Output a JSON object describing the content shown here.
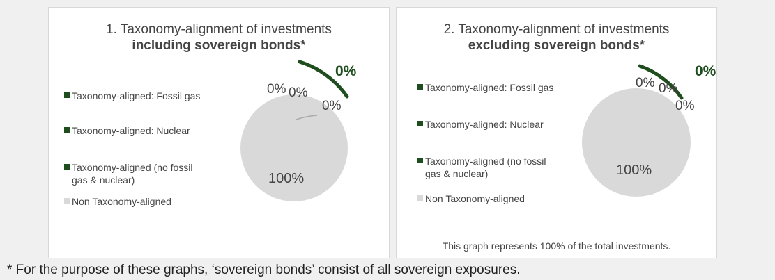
{
  "chart_data": [
    {
      "type": "pie",
      "title": "1. Taxonomy-alignment of investments",
      "subtitle": "including sovereign bonds*",
      "categories": [
        "Taxonomy-aligned: Fossil gas",
        "Taxonomy-aligned: Nuclear",
        "Taxonomy-aligned (no fossil gas & nuclear)",
        "Non Taxonomy-aligned"
      ],
      "values": [
        0,
        0,
        0,
        100
      ],
      "data_labels": [
        "0%",
        "0%",
        "0%",
        "100%"
      ],
      "highlight_label": "0%",
      "colors": [
        "#1e4d1e",
        "#1e4d1e",
        "#1e4d1e",
        "#d9d9d9"
      ],
      "legend_position": "left"
    },
    {
      "type": "pie",
      "title": "2. Taxonomy-alignment of investments",
      "subtitle": "excluding sovereign bonds*",
      "categories": [
        "Taxonomy-aligned: Fossil gas",
        "Taxonomy-aligned: Nuclear",
        "Taxonomy-aligned (no fossil gas & nuclear)",
        "Non Taxonomy-aligned"
      ],
      "values": [
        0,
        0,
        0,
        100
      ],
      "data_labels": [
        "0%",
        "0%",
        "0%",
        "100%"
      ],
      "highlight_label": "0%",
      "colors": [
        "#1e4d1e",
        "#1e4d1e",
        "#1e4d1e",
        "#d9d9d9"
      ],
      "legend_position": "left",
      "note": "This graph represents 100% of the total investments."
    }
  ],
  "legend_labels": [
    [
      "Taxonomy-aligned: Fossil gas"
    ],
    [
      "Taxonomy-aligned: Nuclear"
    ],
    [
      "Taxonomy-aligned (no fossil",
      "gas & nuclear)"
    ],
    [
      "Non Taxonomy-aligned"
    ]
  ],
  "footnote": "* For the purpose of these graphs, ‘sovereign bonds’ consist of all sovereign exposures."
}
